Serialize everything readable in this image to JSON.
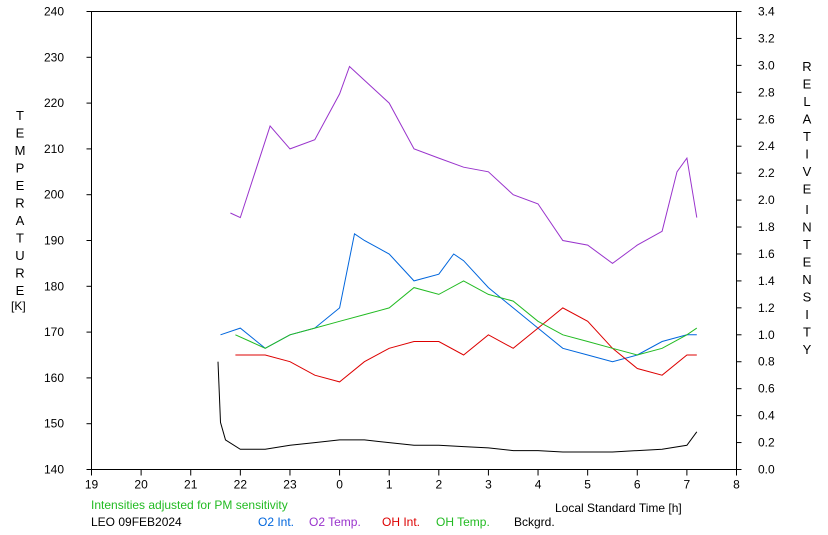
{
  "chart_data": {
    "type": "line",
    "station": "LEO 09FEB2024",
    "note": "Intensities adjusted for PM sensitivity",
    "xlabel": "Local Standard Time [h]",
    "x_ticks": [
      "19",
      "20",
      "21",
      "22",
      "23",
      "0",
      "1",
      "2",
      "3",
      "4",
      "5",
      "6",
      "7",
      "8"
    ],
    "x_range": [
      19,
      32
    ],
    "ylabel_left": "TEMPERATURE",
    "ylabel_left_unit": "[K]",
    "ylim_left": [
      140,
      240
    ],
    "y_ticks_left": [
      "140",
      "150",
      "160",
      "170",
      "180",
      "190",
      "200",
      "210",
      "220",
      "230",
      "240"
    ],
    "ylabel_right": "RELATIVE INTENSITY",
    "ylim_right": [
      0.0,
      3.4
    ],
    "y_ticks_right": [
      "0.0",
      "0.2",
      "0.4",
      "0.6",
      "0.8",
      "1.0",
      "1.2",
      "1.4",
      "1.6",
      "1.8",
      "2.0",
      "2.2",
      "2.4",
      "2.6",
      "2.8",
      "3.0",
      "3.2",
      "3.4"
    ],
    "legend": [
      {
        "label": "O2 Int.",
        "color": "#0066dd"
      },
      {
        "label": "O2 Temp.",
        "color": "#9933cc"
      },
      {
        "label": "OH Int.",
        "color": "#dd0000"
      },
      {
        "label": "OH Temp.",
        "color": "#22bb22"
      },
      {
        "label": "Bckgrd.",
        "color": "#000000"
      }
    ],
    "series": [
      {
        "key": "o2_int",
        "axis": "right",
        "color": "#0066dd",
        "x": [
          21.6,
          22.0,
          22.5,
          23.0,
          23.5,
          24.0,
          24.3,
          24.5,
          25.0,
          25.5,
          26.0,
          26.3,
          26.5,
          27.0,
          27.5,
          28.0,
          28.5,
          29.0,
          29.5,
          30.0,
          30.5,
          31.0,
          31.2
        ],
        "y": [
          1.0,
          1.05,
          0.9,
          1.0,
          1.05,
          1.2,
          1.75,
          1.7,
          1.6,
          1.4,
          1.45,
          1.6,
          1.55,
          1.35,
          1.2,
          1.05,
          0.9,
          0.85,
          0.8,
          0.85,
          0.95,
          1.0,
          1.0
        ]
      },
      {
        "key": "o2_temp",
        "axis": "left",
        "color": "#9933cc",
        "x": [
          21.8,
          22.0,
          22.3,
          22.6,
          23.0,
          23.5,
          24.0,
          24.2,
          24.5,
          25.0,
          25.5,
          26.0,
          26.5,
          27.0,
          27.5,
          28.0,
          28.5,
          29.0,
          29.5,
          30.0,
          30.5,
          30.8,
          31.0,
          31.2
        ],
        "y": [
          196,
          195,
          205,
          215,
          210,
          212,
          222,
          228,
          225,
          220,
          210,
          208,
          206,
          205,
          200,
          198,
          190,
          189,
          185,
          189,
          192,
          205,
          208,
          195
        ]
      },
      {
        "key": "oh_int",
        "axis": "right",
        "color": "#dd0000",
        "x": [
          21.9,
          22.2,
          22.5,
          23.0,
          23.5,
          24.0,
          24.5,
          25.0,
          25.5,
          26.0,
          26.5,
          27.0,
          27.5,
          28.0,
          28.5,
          29.0,
          29.5,
          30.0,
          30.5,
          31.0,
          31.2
        ],
        "y": [
          0.85,
          0.85,
          0.85,
          0.8,
          0.7,
          0.65,
          0.8,
          0.9,
          0.95,
          0.95,
          0.85,
          1.0,
          0.9,
          1.05,
          1.2,
          1.1,
          0.9,
          0.75,
          0.7,
          0.85,
          0.85
        ]
      },
      {
        "key": "oh_temp",
        "axis": "right",
        "color": "#22bb22",
        "x": [
          21.9,
          22.2,
          22.5,
          23.0,
          23.5,
          24.0,
          24.5,
          25.0,
          25.5,
          26.0,
          26.5,
          27.0,
          27.5,
          28.0,
          28.5,
          29.0,
          29.5,
          30.0,
          30.5,
          31.0,
          31.2
        ],
        "y": [
          1.0,
          0.95,
          0.9,
          1.0,
          1.05,
          1.1,
          1.15,
          1.2,
          1.35,
          1.3,
          1.4,
          1.3,
          1.25,
          1.1,
          1.0,
          0.95,
          0.9,
          0.85,
          0.9,
          1.0,
          1.05
        ]
      },
      {
        "key": "bckgrd",
        "axis": "right",
        "color": "#000000",
        "x": [
          21.55,
          21.6,
          21.7,
          22.0,
          22.5,
          23.0,
          23.5,
          24.0,
          24.5,
          25.0,
          25.5,
          26.0,
          26.5,
          27.0,
          27.5,
          28.0,
          28.5,
          29.0,
          29.5,
          30.0,
          30.5,
          31.0,
          31.2
        ],
        "y": [
          0.8,
          0.35,
          0.22,
          0.15,
          0.15,
          0.18,
          0.2,
          0.22,
          0.22,
          0.2,
          0.18,
          0.18,
          0.17,
          0.16,
          0.14,
          0.14,
          0.13,
          0.13,
          0.13,
          0.14,
          0.15,
          0.18,
          0.28
        ]
      }
    ]
  }
}
